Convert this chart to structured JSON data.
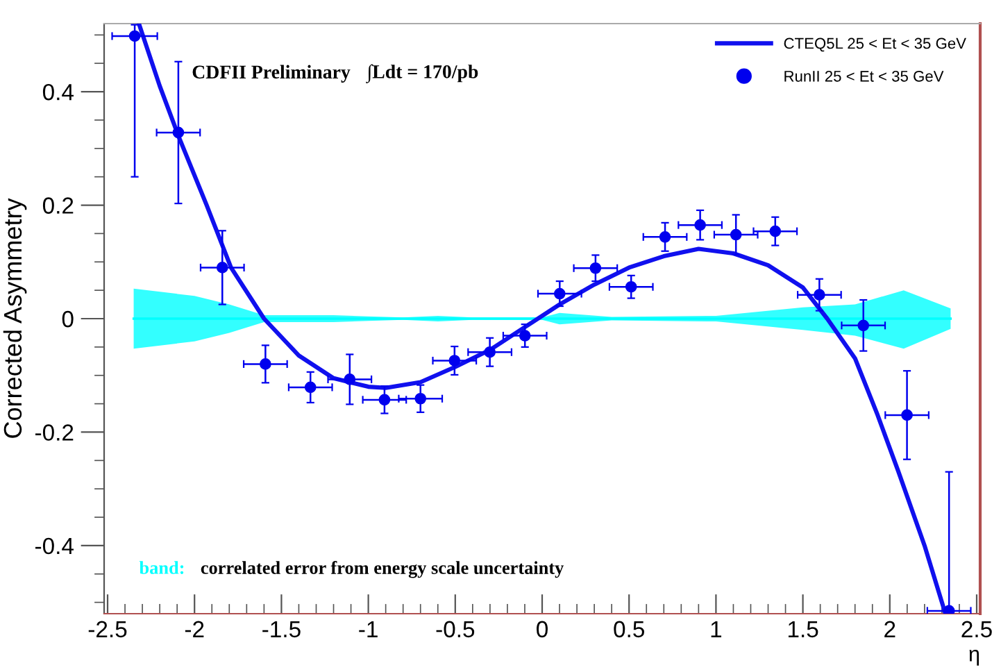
{
  "chart_data": {
    "type": "scatter",
    "xlabel": "η",
    "ylabel": "Corrected Asymmetry",
    "xlim": [
      -2.52,
      2.52
    ],
    "ylim": [
      -0.52,
      0.52
    ],
    "xticks": [
      -2.5,
      -2,
      -1.5,
      -1,
      -0.5,
      0,
      0.5,
      1,
      1.5,
      2,
      2.5
    ],
    "yticks": [
      -0.4,
      -0.2,
      0,
      0.2,
      0.4
    ],
    "grid": false,
    "legend": "top right",
    "annotations": [
      "CDFII Preliminary",
      "∫Ldt = 170/pb",
      "band:",
      "correlated error from energy scale uncertainty"
    ],
    "series": [
      {
        "type": "line",
        "color": "#00ffff",
        "line_style": "solid",
        "marker": "none",
        "x": [
          -2.35,
          -2.0,
          -1.8,
          -1.6,
          -1.2,
          -1.0,
          -0.8,
          -0.6,
          -0.4,
          0,
          0.1,
          0.4,
          1.0,
          1.5,
          1.8,
          2.08,
          2.35
        ],
        "values": [
          0,
          0,
          0,
          0,
          0,
          0,
          0,
          0,
          0,
          0,
          0,
          0,
          0,
          0,
          0,
          0,
          0
        ],
        "lower": [
          -0.053,
          -0.04,
          -0.025,
          -0.006,
          -0.006,
          -0.004,
          -0.002,
          -0.005,
          -0.002,
          -0.002,
          -0.01,
          -0.003,
          -0.005,
          -0.02,
          -0.03,
          -0.053,
          -0.018
        ],
        "upper": [
          0.053,
          0.04,
          0.025,
          0.006,
          0.006,
          0.004,
          0.002,
          0.005,
          0.002,
          0.002,
          0.01,
          0.003,
          0.005,
          0.02,
          0.025,
          0.05,
          0.018
        ]
      },
      {
        "type": "line",
        "name": "CTEQ5L 25 < Et < 35 GeV",
        "color": "#1010ee",
        "line_style": "solid",
        "marker": "none",
        "x": [
          -2.32,
          -2.2,
          -2.09,
          -1.93,
          -1.79,
          -1.6,
          -1.4,
          -1.2,
          -1.0,
          -0.9,
          -0.7,
          -0.5,
          -0.3,
          -0.1,
          0.1,
          0.3,
          0.5,
          0.7,
          0.9,
          1.1,
          1.3,
          1.5,
          1.64,
          1.8,
          1.93,
          2.05,
          2.2,
          2.32
        ],
        "values": [
          0.52,
          0.41,
          0.32,
          0.2,
          0.09,
          0.0,
          -0.065,
          -0.105,
          -0.12,
          -0.122,
          -0.112,
          -0.085,
          -0.055,
          -0.015,
          0.025,
          0.06,
          0.09,
          0.11,
          0.123,
          0.115,
          0.094,
          0.055,
          0.0,
          -0.07,
          -0.17,
          -0.27,
          -0.4,
          -0.52
        ]
      },
      {
        "name": "RunII 25 < Et < 35 GeV",
        "color": "#0000ee",
        "marker": "circle",
        "x": [
          -2.344,
          -2.093,
          -1.84,
          -1.592,
          -1.333,
          -1.107,
          -0.907,
          -0.7,
          -0.504,
          -0.301,
          -0.099,
          0.101,
          0.307,
          0.512,
          0.707,
          0.909,
          1.115,
          1.341,
          1.595,
          1.848,
          2.099,
          2.341
        ],
        "values": [
          0.498,
          0.328,
          0.09,
          -0.08,
          -0.121,
          -0.107,
          -0.143,
          -0.141,
          -0.074,
          -0.059,
          -0.03,
          0.044,
          0.089,
          0.056,
          0.144,
          0.165,
          0.148,
          0.154,
          0.042,
          -0.012,
          -0.17,
          -0.515
        ],
        "errors": [
          [
            0.25,
            0.518
          ],
          0.125,
          0.065,
          0.033,
          0.027,
          0.044,
          0.024,
          0.024,
          0.025,
          0.025,
          0.02,
          0.022,
          0.023,
          0.02,
          0.025,
          0.026,
          0.035,
          0.025,
          0.028,
          0.045,
          0.078,
          [
            -0.518,
            -0.27
          ]
        ],
        "xerrors": [
          0.13,
          0.125,
          0.125,
          0.125,
          0.125,
          0.125,
          0.125,
          0.125,
          0.125,
          0.125,
          0.125,
          0.125,
          0.125,
          0.125,
          0.125,
          0.125,
          0.125,
          0.125,
          0.125,
          0.125,
          0.125,
          0.125
        ]
      }
    ]
  }
}
